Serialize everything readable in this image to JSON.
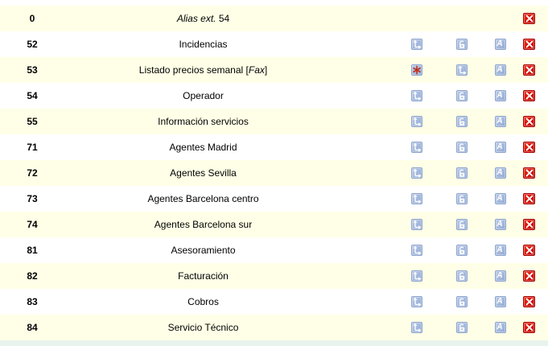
{
  "colors": {
    "row_stripe": "#FFFFE7",
    "row_plain": "#FFFFFF",
    "footer_bar": "#E9F3ED",
    "action_button_blue": "#A3B8DC",
    "delete_button_red": "#D80A00",
    "pdf_glyph_red": "#C62A12"
  },
  "icons": {
    "transfer": "transfer-arrow-icon",
    "unlock": "unlock-padlock-icon",
    "alias": "alias-a-icon",
    "pdf": "pdf-icon",
    "delete": "delete-x-icon"
  },
  "table": {
    "rows": [
      {
        "ext": "0",
        "name_parts": [
          {
            "text": "Alias ext.",
            "italic": true
          },
          {
            "text": " 54",
            "italic": false
          }
        ],
        "icons": [
          "",
          "",
          "",
          "delete"
        ]
      },
      {
        "ext": "52",
        "name_parts": [
          {
            "text": "Incidencias",
            "italic": false
          }
        ],
        "icons": [
          "transfer",
          "unlock",
          "alias",
          "delete"
        ]
      },
      {
        "ext": "53",
        "name_parts": [
          {
            "text": "Listado precios semanal [",
            "italic": false
          },
          {
            "text": "Fax",
            "italic": true
          },
          {
            "text": "]",
            "italic": false
          }
        ],
        "icons": [
          "pdf",
          "transfer",
          "alias",
          "delete"
        ]
      },
      {
        "ext": "54",
        "name_parts": [
          {
            "text": "Operador",
            "italic": false
          }
        ],
        "icons": [
          "transfer",
          "unlock",
          "alias",
          "delete"
        ]
      },
      {
        "ext": "55",
        "name_parts": [
          {
            "text": "Información servicios",
            "italic": false
          }
        ],
        "icons": [
          "transfer",
          "unlock",
          "alias",
          "delete"
        ]
      },
      {
        "ext": "71",
        "name_parts": [
          {
            "text": "Agentes Madrid",
            "italic": false
          }
        ],
        "icons": [
          "transfer",
          "unlock",
          "alias",
          "delete"
        ]
      },
      {
        "ext": "72",
        "name_parts": [
          {
            "text": "Agentes Sevilla",
            "italic": false
          }
        ],
        "icons": [
          "transfer",
          "unlock",
          "alias",
          "delete"
        ]
      },
      {
        "ext": "73",
        "name_parts": [
          {
            "text": "Agentes Barcelona centro",
            "italic": false
          }
        ],
        "icons": [
          "transfer",
          "unlock",
          "alias",
          "delete"
        ]
      },
      {
        "ext": "74",
        "name_parts": [
          {
            "text": "Agentes Barcelona sur",
            "italic": false
          }
        ],
        "icons": [
          "transfer",
          "unlock",
          "alias",
          "delete"
        ]
      },
      {
        "ext": "81",
        "name_parts": [
          {
            "text": "Asesoramiento",
            "italic": false
          }
        ],
        "icons": [
          "transfer",
          "unlock",
          "alias",
          "delete"
        ]
      },
      {
        "ext": "82",
        "name_parts": [
          {
            "text": "Facturación",
            "italic": false
          }
        ],
        "icons": [
          "transfer",
          "unlock",
          "alias",
          "delete"
        ]
      },
      {
        "ext": "83",
        "name_parts": [
          {
            "text": "Cobros",
            "italic": false
          }
        ],
        "icons": [
          "transfer",
          "unlock",
          "alias",
          "delete"
        ]
      },
      {
        "ext": "84",
        "name_parts": [
          {
            "text": "Servicio Técnico",
            "italic": false
          }
        ],
        "icons": [
          "transfer",
          "unlock",
          "alias",
          "delete"
        ]
      }
    ]
  }
}
